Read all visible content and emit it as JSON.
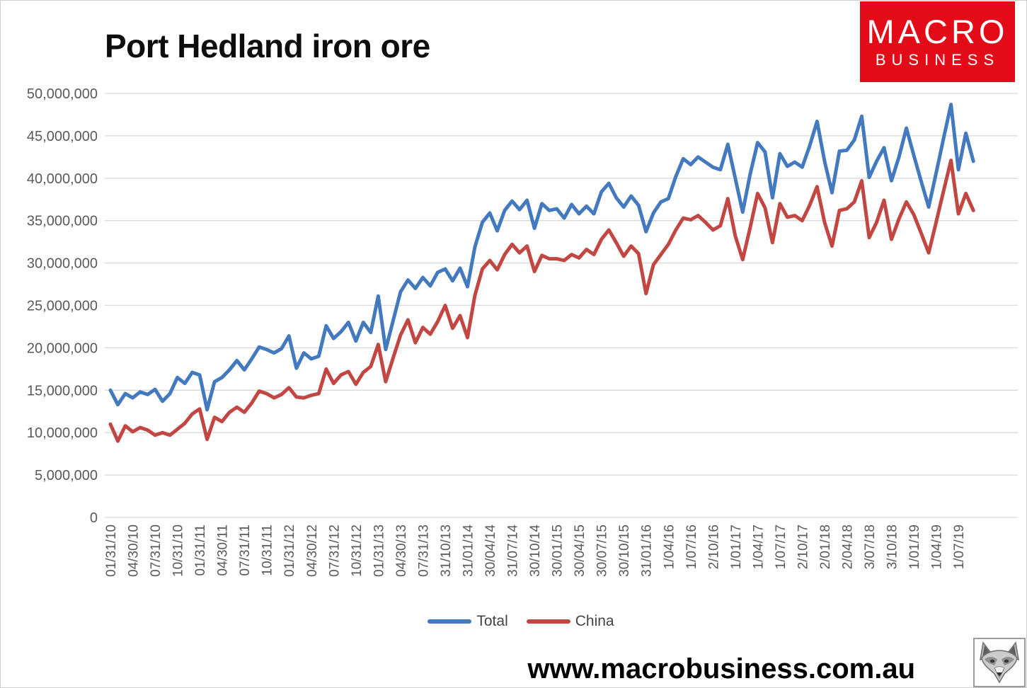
{
  "title": "Port Hedland iron ore",
  "logo": {
    "line1": "MACRO",
    "line2": "BUSINESS",
    "bg_color": "#e30b17",
    "fg_color": "#ffffff"
  },
  "footer": {
    "website": "www.macrobusiness.com.au"
  },
  "icons": {
    "watermark": "fox-logo"
  },
  "chart_data": {
    "type": "line",
    "title": "Port Hedland iron ore",
    "xlabel": "",
    "ylabel": "",
    "ylim": [
      0,
      50000000
    ],
    "y_tick_step": 5000000,
    "y_tick_labels": [
      "0",
      "5,000,000",
      "10,000,000",
      "15,000,000",
      "20,000,000",
      "25,000,000",
      "30,000,000",
      "35,000,000",
      "40,000,000",
      "45,000,000",
      "50,000,000"
    ],
    "grid": "horizontal",
    "grid_color": "#d9d9d9",
    "axis_text_color": "#595959",
    "legend_position": "bottom",
    "months_per_x_tick": 3,
    "x_tick_labels": [
      "01/31/10",
      "04/30/10",
      "07/31/10",
      "10/31/10",
      "01/31/11",
      "04/30/11",
      "07/31/11",
      "10/31/11",
      "01/31/12",
      "04/30/12",
      "07/31/12",
      "10/31/12",
      "01/31/13",
      "04/30/13",
      "07/31/13",
      "31/10/13",
      "31/01/14",
      "30/04/14",
      "31/07/14",
      "30/10/14",
      "30/01/15",
      "30/04/15",
      "30/07/15",
      "30/10/15",
      "31/01/16",
      "1/04/16",
      "1/07/16",
      "2/10/16",
      "1/01/17",
      "1/04/17",
      "1/07/17",
      "2/10/17",
      "2/01/18",
      "2/04/18",
      "3/07/18",
      "3/10/18",
      "1/01/19",
      "1/04/19",
      "1/07/19"
    ],
    "series": [
      {
        "name": "Total",
        "color": "#4379BE",
        "values_millions": [
          15.0,
          13.3,
          14.6,
          14.1,
          14.8,
          14.5,
          15.1,
          13.7,
          14.6,
          16.5,
          15.8,
          17.1,
          16.8,
          12.7,
          16.0,
          16.5,
          17.4,
          18.5,
          17.4,
          18.7,
          20.1,
          19.8,
          19.4,
          19.9,
          21.4,
          17.6,
          19.4,
          18.7,
          19.0,
          22.6,
          21.1,
          21.9,
          23.0,
          20.8,
          23.0,
          21.8,
          26.1,
          19.8,
          23.2,
          26.6,
          28.0,
          27.0,
          28.3,
          27.3,
          28.9,
          29.3,
          27.9,
          29.4,
          27.2,
          31.9,
          34.8,
          35.9,
          33.8,
          36.2,
          37.3,
          36.3,
          37.4,
          34.1,
          37.0,
          36.2,
          36.4,
          35.3,
          36.9,
          35.8,
          36.7,
          35.8,
          38.4,
          39.4,
          37.7,
          36.6,
          37.9,
          36.8,
          33.7,
          35.9,
          37.2,
          37.6,
          40.2,
          42.3,
          41.6,
          42.5,
          41.9,
          41.3,
          41.0,
          44.0,
          40.0,
          36.0,
          40.5,
          44.2,
          43.1,
          37.7,
          42.9,
          41.4,
          41.9,
          41.3,
          43.8,
          46.7,
          42.0,
          38.3,
          43.2,
          43.3,
          44.5,
          47.3,
          40.1,
          42.0,
          43.6,
          39.7,
          42.5,
          45.9,
          42.7,
          39.6,
          36.6,
          40.6,
          44.7,
          48.7,
          41.0,
          45.3,
          42.0
        ]
      },
      {
        "name": "China",
        "color": "#C24743",
        "values_millions": [
          11.0,
          9.0,
          10.8,
          10.1,
          10.6,
          10.3,
          9.7,
          10.0,
          9.7,
          10.4,
          11.1,
          12.2,
          12.8,
          9.2,
          11.8,
          11.3,
          12.4,
          13.0,
          12.4,
          13.5,
          14.9,
          14.6,
          14.1,
          14.5,
          15.3,
          14.2,
          14.1,
          14.4,
          14.6,
          17.5,
          15.8,
          16.8,
          17.2,
          15.7,
          17.1,
          17.8,
          20.4,
          16.0,
          18.8,
          21.5,
          23.3,
          20.6,
          22.4,
          21.6,
          23.1,
          25.0,
          22.3,
          23.8,
          21.2,
          26.2,
          29.3,
          30.3,
          29.2,
          31.0,
          32.2,
          31.2,
          32.0,
          29.0,
          30.9,
          30.5,
          30.5,
          30.3,
          31.0,
          30.6,
          31.6,
          31.0,
          32.8,
          33.9,
          32.4,
          30.8,
          32.0,
          31.1,
          26.4,
          29.8,
          31.0,
          32.2,
          33.9,
          35.3,
          35.1,
          35.6,
          34.8,
          33.9,
          34.4,
          37.6,
          33.2,
          30.4,
          34.2,
          38.2,
          36.5,
          32.4,
          37.0,
          35.4,
          35.6,
          35.0,
          36.8,
          39.0,
          34.8,
          32.0,
          36.2,
          36.4,
          37.2,
          39.7,
          33.0,
          34.8,
          37.4,
          32.8,
          35.2,
          37.2,
          35.7,
          33.5,
          31.2,
          34.8,
          38.5,
          42.1,
          35.8,
          38.2,
          36.2
        ]
      }
    ]
  }
}
